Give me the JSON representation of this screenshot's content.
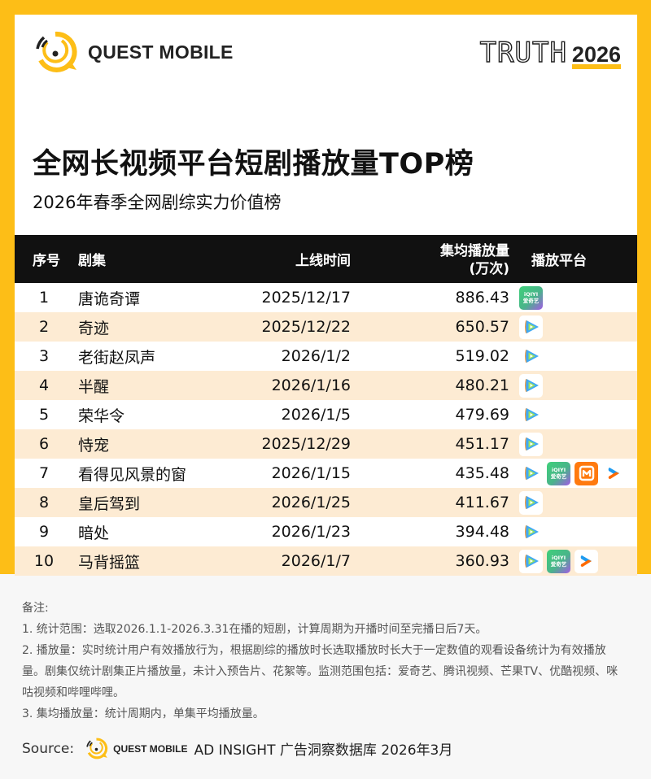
{
  "brand": {
    "logo_text": "QUEST MOBILE",
    "event_word": "TRUTH",
    "event_year": "2026",
    "accent_color": "#fdbe17"
  },
  "header": {
    "title": "全网长视频平台短剧播放量TOP榜",
    "subtitle": "2026年春季全网剧综实力价值榜"
  },
  "table": {
    "columns": {
      "rank": "序号",
      "name": "剧集",
      "date": "上线时间",
      "views_line1": "集均播放量",
      "views_line2": "(万次)",
      "platform": "播放平台"
    },
    "rows": [
      {
        "rank": "1",
        "name": "唐诡奇谭",
        "date": "2025/12/17",
        "views": "886.43",
        "platforms": [
          "iqiyi"
        ]
      },
      {
        "rank": "2",
        "name": "奇迹",
        "date": "2025/12/22",
        "views": "650.57",
        "platforms": [
          "tencent"
        ]
      },
      {
        "rank": "3",
        "name": "老街赵凤声",
        "date": "2026/1/2",
        "views": "519.02",
        "platforms": [
          "tencent"
        ]
      },
      {
        "rank": "4",
        "name": "半醒",
        "date": "2026/1/16",
        "views": "480.21",
        "platforms": [
          "tencent"
        ]
      },
      {
        "rank": "5",
        "name": "荣华令",
        "date": "2026/1/5",
        "views": "479.69",
        "platforms": [
          "tencent"
        ]
      },
      {
        "rank": "6",
        "name": "恃宠",
        "date": "2025/12/29",
        "views": "451.17",
        "platforms": [
          "tencent"
        ]
      },
      {
        "rank": "7",
        "name": "看得见风景的窗",
        "date": "2026/1/15",
        "views": "435.48",
        "platforms": [
          "tencent",
          "iqiyi",
          "mango",
          "youku"
        ]
      },
      {
        "rank": "8",
        "name": "皇后驾到",
        "date": "2026/1/25",
        "views": "411.67",
        "platforms": [
          "tencent"
        ]
      },
      {
        "rank": "9",
        "name": "暗处",
        "date": "2026/1/23",
        "views": "394.48",
        "platforms": [
          "tencent"
        ]
      },
      {
        "rank": "10",
        "name": "马背摇篮",
        "date": "2026/1/7",
        "views": "360.93",
        "platforms": [
          "tencent",
          "iqiyi",
          "youku"
        ]
      }
    ],
    "platform_icons": {
      "iqiyi": {
        "label_top": "iQIYI",
        "label_bottom": "爱奇艺"
      },
      "tencent": {
        "label": "腾讯视频"
      },
      "mango": {
        "label": "芒果TV"
      },
      "youku": {
        "label": "优酷"
      }
    }
  },
  "notes": {
    "heading": "备注:",
    "items": [
      "1. 统计范围：选取2026.1.1-2026.3.31在播的短剧，计算周期为开播时间至完播日后7天。",
      "2. 播放量：实时统计用户有效播放行为，根据剧综的播放时长选取播放时长大于一定数值的观看设备统计为有效播放量。剧集仅统计剧集正片播放量，未计入预告片、花絮等。监测范围包括：爱奇艺、腾讯视频、芒果TV、优酷视频、咪咕视频和哔哩哔哩。",
      "3. 集均播放量：统计周期内，单集平均播放量。"
    ]
  },
  "source": {
    "label": "Source:",
    "logo_text": "QUEST MOBILE",
    "text": "AD INSIGHT 广告洞察数据库 2026年3月"
  }
}
